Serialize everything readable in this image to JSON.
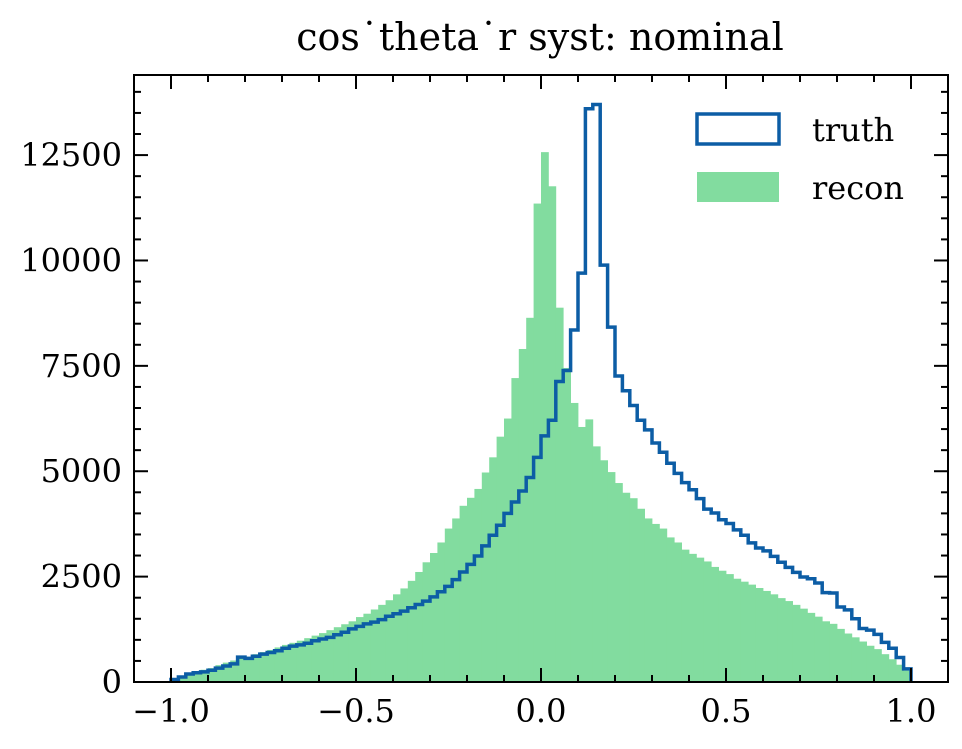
{
  "chart_data": {
    "type": "histogram",
    "title": "cos˙theta˙r syst: nominal",
    "xlabel": "",
    "ylabel": "",
    "xlim": [
      -1.1,
      1.1
    ],
    "ylim": [
      0,
      14400
    ],
    "x_ticks": [
      -1.0,
      -0.5,
      0.0,
      0.5,
      1.0
    ],
    "x_tick_labels": [
      "−1.0",
      "−0.5",
      "0.0",
      "0.5",
      "1.0"
    ],
    "y_ticks": [
      0,
      2500,
      5000,
      7500,
      10000,
      12500
    ],
    "y_tick_labels": [
      "0",
      "2500",
      "5000",
      "7500",
      "10000",
      "12500"
    ],
    "bin_edges_range": [
      -1.0,
      1.0
    ],
    "bin_count": 100,
    "legend_position": "top-right",
    "grid": false,
    "series": [
      {
        "name": "truth",
        "style": "step",
        "color": "#0C5DA5",
        "values": [
          60,
          120,
          190,
          220,
          240,
          280,
          330,
          380,
          430,
          590,
          560,
          610,
          660,
          700,
          740,
          800,
          850,
          880,
          920,
          980,
          1020,
          1060,
          1120,
          1180,
          1260,
          1320,
          1380,
          1420,
          1480,
          1560,
          1620,
          1680,
          1760,
          1840,
          1920,
          2020,
          2140,
          2270,
          2430,
          2610,
          2790,
          2990,
          3230,
          3480,
          3720,
          4000,
          4270,
          4530,
          4850,
          5330,
          5840,
          6210,
          7130,
          7390,
          8350,
          9700,
          13600,
          13700,
          9890,
          8420,
          7260,
          6910,
          6560,
          6210,
          5980,
          5670,
          5450,
          5190,
          4950,
          4730,
          4560,
          4350,
          4100,
          4010,
          3850,
          3760,
          3610,
          3480,
          3300,
          3180,
          3110,
          2980,
          2840,
          2720,
          2600,
          2490,
          2450,
          2350,
          2120,
          2110,
          1780,
          1710,
          1500,
          1270,
          1230,
          1130,
          940,
          800,
          580,
          310
        ]
      },
      {
        "name": "recon",
        "style": "filled",
        "color": "#82DC9F",
        "values": [
          40,
          120,
          180,
          230,
          290,
          330,
          400,
          460,
          510,
          560,
          600,
          660,
          710,
          760,
          820,
          880,
          930,
          980,
          1040,
          1100,
          1160,
          1230,
          1300,
          1370,
          1440,
          1540,
          1620,
          1720,
          1830,
          1940,
          2080,
          2220,
          2400,
          2610,
          2840,
          3060,
          3310,
          3640,
          3880,
          4180,
          4370,
          4580,
          4970,
          5330,
          5820,
          6250,
          7210,
          7900,
          8640,
          11350,
          12570,
          11760,
          8880,
          7450,
          6620,
          6050,
          6230,
          5590,
          5260,
          4980,
          4720,
          4490,
          4360,
          4110,
          3880,
          3750,
          3640,
          3430,
          3310,
          3140,
          3040,
          2950,
          2860,
          2730,
          2640,
          2560,
          2450,
          2380,
          2310,
          2230,
          2160,
          2080,
          1990,
          1920,
          1830,
          1740,
          1640,
          1550,
          1440,
          1380,
          1260,
          1150,
          1060,
          960,
          860,
          780,
          660,
          540,
          410,
          270
        ]
      }
    ]
  }
}
